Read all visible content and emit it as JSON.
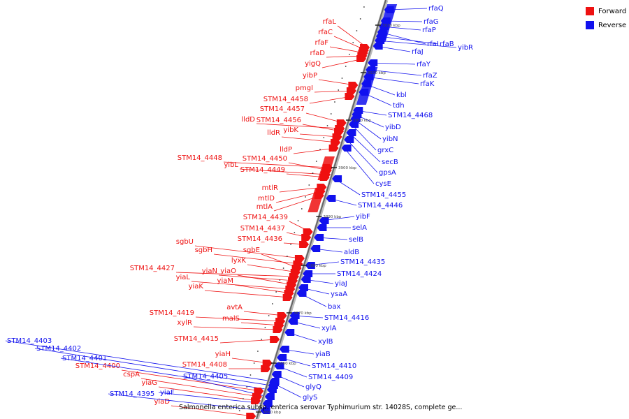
{
  "legend": {
    "forward_label": "Forward",
    "reverse_label": "Reverse",
    "forward_color": "#ee1111",
    "reverse_color": "#1111ee"
  },
  "caption": "Salmonella enterica subsp. enterica serovar Typhimurium str. 14028S, complete ge...",
  "ticks": [
    "3930 kbp",
    "3920 kbp",
    "3910 kbp",
    "3900 kbp",
    "3890 kbp",
    "3880 kbp",
    "3870 kbp",
    "3860 kbp",
    "3850 kbp"
  ],
  "forward_genes": [
    "rfaL",
    "rfaC",
    "rfaF",
    "rfaD",
    "yigQ",
    "yibP",
    "pmgI",
    "STM14_4458",
    "STM14_4457",
    "lldD",
    "STM14_4456",
    "yibK",
    "lldR",
    "lldP",
    "STM14_4448",
    "STM14_4450",
    "yibL",
    "STM14_4449",
    "mtlR",
    "mtlD",
    "mtlA",
    "STM14_4439",
    "STM14_4437",
    "STM14_4436",
    "sgbU",
    "sgbH",
    "sgbE",
    "lyxK",
    "STM14_4427",
    "yiaN",
    "yiaO",
    "yiaL",
    "yiaM",
    "yiaK",
    "avtA",
    "STM14_4419",
    "malS",
    "xylR",
    "STM14_4415",
    "yiaH",
    "STM14_4408",
    "STM14_4400",
    "cspA",
    "yiaG",
    "yiaD"
  ],
  "reverse_genes": [
    "rfaQ",
    "rfaG",
    "rfaP",
    "rfaI",
    "rfaB",
    "yibR",
    "rfaJ",
    "rfaY",
    "rfaZ",
    "rfaK",
    "kbl",
    "tdh",
    "STM14_4468",
    "yibD",
    "yibN",
    "grxC",
    "secB",
    "gpsA",
    "cysE",
    "STM14_4455",
    "STM14_4446",
    "yibF",
    "selA",
    "selB",
    "aldB",
    "STM14_4435",
    "STM14_4424",
    "yiaJ",
    "ysaA",
    "bax",
    "STM14_4416",
    "xylA",
    "xylB",
    "yiaB",
    "STM14_4410",
    "STM14_4409",
    "glyQ",
    "glyS",
    "STM14_4403",
    "STM14_4402",
    "STM14_4401",
    "STM14_4405",
    "yiaF",
    "STM14_4395"
  ]
}
